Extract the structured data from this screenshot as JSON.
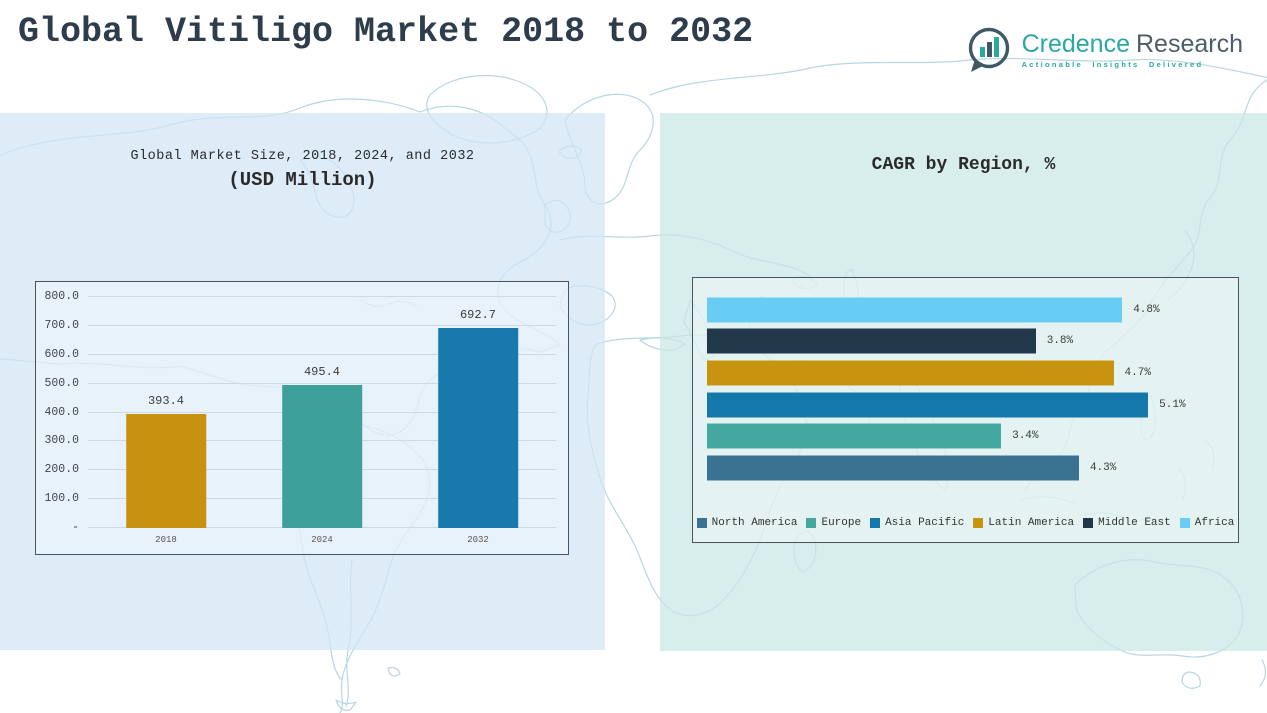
{
  "header": {
    "title": "Global Vitiligo Market 2018 to 2032"
  },
  "logo": {
    "brand_primary": "Credence",
    "brand_secondary": "Research",
    "tagline": "Actionable Insights Delivered",
    "teal": "#2BA8A4",
    "slate": "#46586A"
  },
  "chart_data": [
    {
      "type": "bar",
      "title": "Global Market Size, 2018, 2024, and 2032",
      "subtitle": "(USD Million)",
      "categories": [
        "2018",
        "2024",
        "2032"
      ],
      "values": [
        393.4,
        495.4,
        692.7
      ],
      "value_labels": [
        "393.4",
        "495.4",
        "692.7"
      ],
      "bar_colors": [
        "#C6920F",
        "#3EA09B",
        "#1779AC"
      ],
      "xlabel": "",
      "ylabel": "",
      "ylim": [
        0,
        800
      ],
      "tick_values": [
        0,
        100,
        200,
        300,
        400,
        500,
        600,
        700,
        800
      ],
      "tick_labels": [
        "-",
        "100.0",
        "200.0",
        "300.0",
        "400.0",
        "500.0",
        "600.0",
        "700.0",
        "800.0"
      ],
      "grid": true,
      "legend_position": "none"
    },
    {
      "type": "bar-horizontal",
      "title": "CAGR by Region, %",
      "categories": [
        "Africa",
        "Middle East",
        "Latin America",
        "Asia Pacific",
        "Europe",
        "North America"
      ],
      "values": [
        4.8,
        3.8,
        4.7,
        5.1,
        3.4,
        4.3
      ],
      "value_labels": [
        "4.8%",
        "3.8%",
        "4.7%",
        "5.1%",
        "3.4%",
        "4.3%"
      ],
      "bar_colors": [
        "#68CDF5",
        "#20384A",
        "#C8940F",
        "#1478AB",
        "#45A8A0",
        "#3A7391"
      ],
      "xlabel": "",
      "ylabel": "",
      "xlim": [
        0,
        6
      ],
      "grid": false,
      "legend_position": "bottom",
      "legend": [
        {
          "label": "North America",
          "color": "#3A7391"
        },
        {
          "label": "Europe",
          "color": "#45A8A0"
        },
        {
          "label": "Asia Pacific",
          "color": "#1478AB"
        },
        {
          "label": "Latin America",
          "color": "#C8940F"
        },
        {
          "label": "Middle East",
          "color": "#20384A"
        },
        {
          "label": "Africa",
          "color": "#68CDF5"
        }
      ]
    }
  ]
}
